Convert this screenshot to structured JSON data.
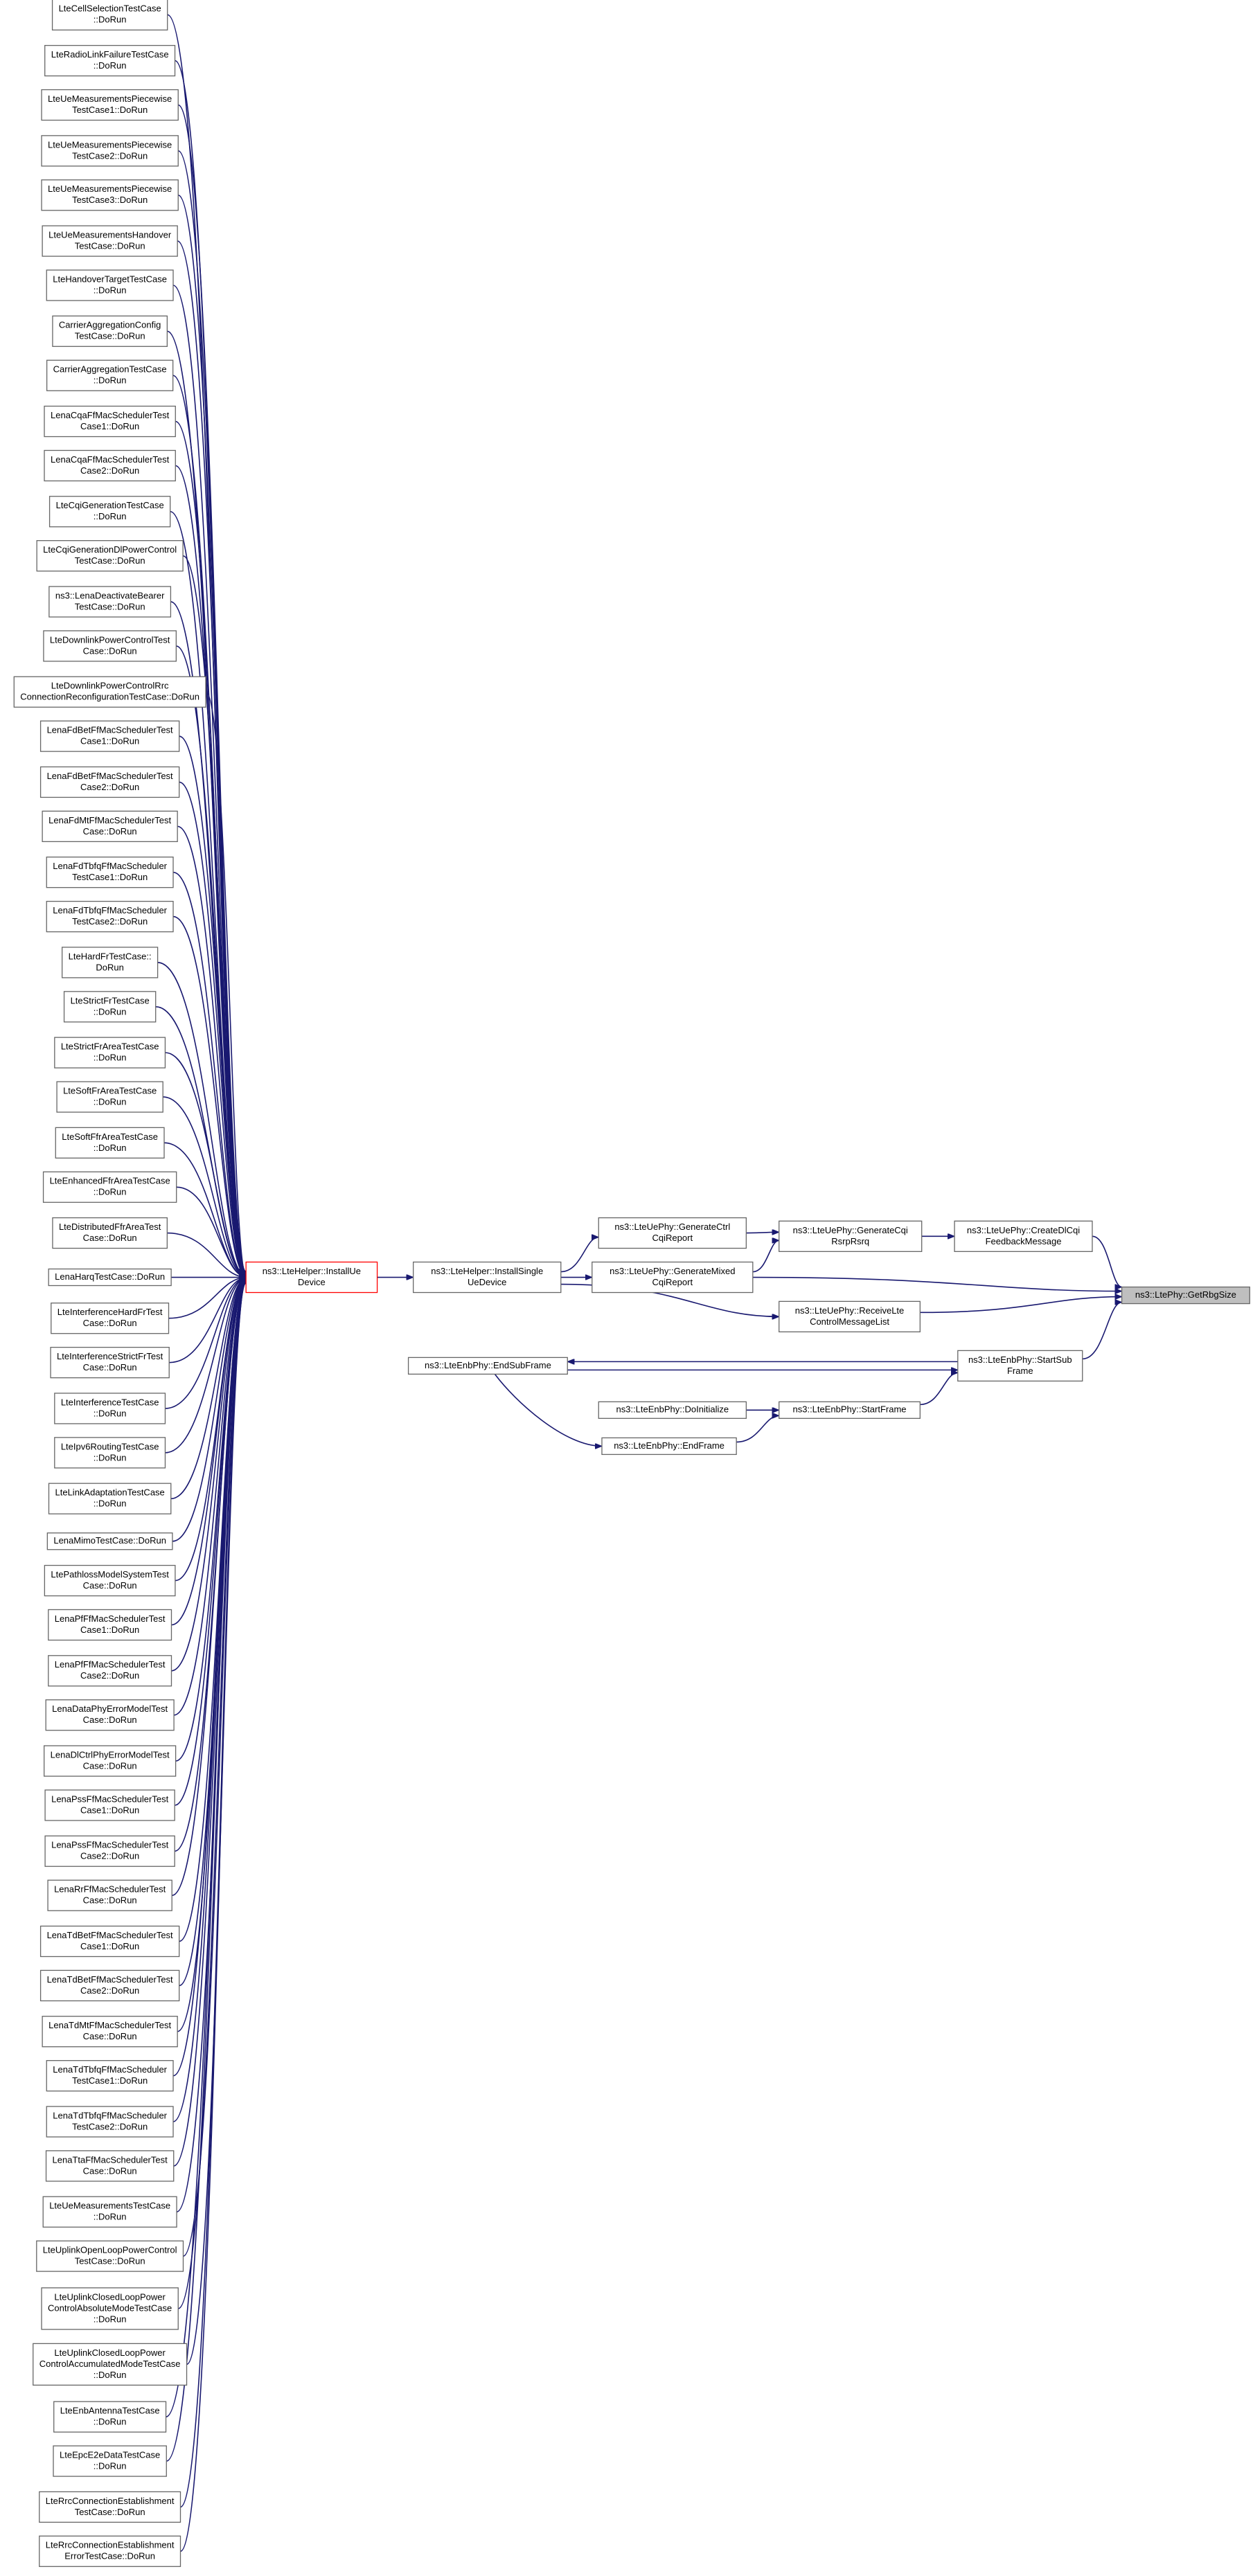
{
  "nodes": [
    {
      "lines": [
        "LteCellSelectionTestCase",
        "::DoRun"
      ]
    },
    {
      "lines": [
        "LteRadioLinkFailureTestCase",
        "::DoRun"
      ]
    },
    {
      "lines": [
        "LteUeMeasurementsPiecewise",
        "TestCase1::DoRun"
      ]
    },
    {
      "lines": [
        "LteUeMeasurementsPiecewise",
        "TestCase2::DoRun"
      ]
    },
    {
      "lines": [
        "LteUeMeasurementsPiecewise",
        "TestCase3::DoRun"
      ]
    },
    {
      "lines": [
        "LteUeMeasurementsHandover",
        "TestCase::DoRun"
      ]
    },
    {
      "lines": [
        "LteHandoverTargetTestCase",
        "::DoRun"
      ]
    },
    {
      "lines": [
        "CarrierAggregationConfig",
        "TestCase::DoRun"
      ]
    },
    {
      "lines": [
        "CarrierAggregationTestCase",
        "::DoRun"
      ]
    },
    {
      "lines": [
        "LenaCqaFfMacSchedulerTest",
        "Case1::DoRun"
      ]
    },
    {
      "lines": [
        "LenaCqaFfMacSchedulerTest",
        "Case2::DoRun"
      ]
    },
    {
      "lines": [
        "LteCqiGenerationTestCase",
        "::DoRun"
      ]
    },
    {
      "lines": [
        "LteCqiGenerationDlPowerControl",
        "TestCase::DoRun"
      ]
    },
    {
      "lines": [
        "ns3::LenaDeactivateBearer",
        "TestCase::DoRun"
      ]
    },
    {
      "lines": [
        "LteDownlinkPowerControlTest",
        "Case::DoRun"
      ]
    },
    {
      "lines": [
        "LteDownlinkPowerControlRrc",
        "ConnectionReconfigurationTestCase::DoRun"
      ]
    },
    {
      "lines": [
        "LenaFdBetFfMacSchedulerTest",
        "Case1::DoRun"
      ]
    },
    {
      "lines": [
        "LenaFdBetFfMacSchedulerTest",
        "Case2::DoRun"
      ]
    },
    {
      "lines": [
        "LenaFdMtFfMacSchedulerTest",
        "Case::DoRun"
      ]
    },
    {
      "lines": [
        "LenaFdTbfqFfMacScheduler",
        "TestCase1::DoRun"
      ]
    },
    {
      "lines": [
        "LenaFdTbfqFfMacScheduler",
        "TestCase2::DoRun"
      ]
    },
    {
      "lines": [
        "LteHardFrTestCase::",
        "DoRun"
      ]
    },
    {
      "lines": [
        "LteStrictFrTestCase",
        "::DoRun"
      ]
    },
    {
      "lines": [
        "LteStrictFrAreaTestCase",
        "::DoRun"
      ]
    },
    {
      "lines": [
        "LteSoftFrAreaTestCase",
        "::DoRun"
      ]
    },
    {
      "lines": [
        "LteSoftFfrAreaTestCase",
        "::DoRun"
      ]
    },
    {
      "lines": [
        "LteEnhancedFfrAreaTestCase",
        "::DoRun"
      ]
    },
    {
      "lines": [
        "LteDistributedFfrAreaTest",
        "Case::DoRun"
      ]
    },
    {
      "lines": [
        "LenaHarqTestCase::DoRun"
      ]
    },
    {
      "lines": [
        "LteInterferenceHardFrTest",
        "Case::DoRun"
      ]
    },
    {
      "lines": [
        "LteInterferenceStrictFrTest",
        "Case::DoRun"
      ]
    },
    {
      "lines": [
        "LteInterferenceTestCase",
        "::DoRun"
      ]
    },
    {
      "lines": [
        "LteIpv6RoutingTestCase",
        "::DoRun"
      ]
    },
    {
      "lines": [
        "LteLinkAdaptationTestCase",
        "::DoRun"
      ]
    },
    {
      "lines": [
        "LenaMimoTestCase::DoRun"
      ]
    },
    {
      "lines": [
        "LtePathlossModelSystemTest",
        "Case::DoRun"
      ]
    },
    {
      "lines": [
        "LenaPfFfMacSchedulerTest",
        "Case1::DoRun"
      ]
    },
    {
      "lines": [
        "LenaPfFfMacSchedulerTest",
        "Case2::DoRun"
      ]
    },
    {
      "lines": [
        "LenaDataPhyErrorModelTest",
        "Case::DoRun"
      ]
    },
    {
      "lines": [
        "LenaDlCtrlPhyErrorModelTest",
        "Case::DoRun"
      ]
    },
    {
      "lines": [
        "LenaPssFfMacSchedulerTest",
        "Case1::DoRun"
      ]
    },
    {
      "lines": [
        "LenaPssFfMacSchedulerTest",
        "Case2::DoRun"
      ]
    },
    {
      "lines": [
        "LenaRrFfMacSchedulerTest",
        "Case::DoRun"
      ]
    },
    {
      "lines": [
        "LenaTdBetFfMacSchedulerTest",
        "Case1::DoRun"
      ]
    },
    {
      "lines": [
        "LenaTdBetFfMacSchedulerTest",
        "Case2::DoRun"
      ]
    },
    {
      "lines": [
        "LenaTdMtFfMacSchedulerTest",
        "Case::DoRun"
      ]
    },
    {
      "lines": [
        "LenaTdTbfqFfMacScheduler",
        "TestCase1::DoRun"
      ]
    },
    {
      "lines": [
        "LenaTdTbfqFfMacScheduler",
        "TestCase2::DoRun"
      ]
    },
    {
      "lines": [
        "LenaTtaFfMacSchedulerTest",
        "Case::DoRun"
      ]
    },
    {
      "lines": [
        "LteUeMeasurementsTestCase",
        "::DoRun"
      ]
    },
    {
      "lines": [
        "LteUplinkOpenLoopPowerControl",
        "TestCase::DoRun"
      ]
    },
    {
      "lines": [
        "LteUplinkClosedLoopPower",
        "ControlAbsoluteModeTestCase",
        "::DoRun"
      ]
    },
    {
      "lines": [
        "LteUplinkClosedLoopPower",
        "ControlAccumulatedModeTestCase",
        "::DoRun"
      ]
    },
    {
      "lines": [
        "LteEnbAntennaTestCase",
        "::DoRun"
      ]
    },
    {
      "lines": [
        "LteEpcE2eDataTestCase",
        "::DoRun"
      ]
    },
    {
      "lines": [
        "LteRrcConnectionEstablishment",
        "TestCase::DoRun"
      ]
    },
    {
      "lines": [
        "LteRrcConnectionEstablishment",
        "ErrorTestCase::DoRun"
      ]
    },
    {
      "lines": [
        "ns3::LteHelper::InstallUe",
        "Device"
      ]
    },
    {
      "lines": [
        "ns3::LteHelper::InstallSingle",
        "UeDevice"
      ]
    },
    {
      "lines": [
        "ns3::LteUePhy::GenerateCtrl",
        "CqiReport"
      ]
    },
    {
      "lines": [
        "ns3::LteUePhy::GenerateMixed",
        "CqiReport"
      ]
    },
    {
      "lines": [
        "ns3::LteUePhy::GenerateCqi",
        "RsrpRsrq"
      ]
    },
    {
      "lines": [
        "ns3::LteUePhy::CreateDlCqi",
        "FeedbackMessage"
      ]
    },
    {
      "lines": [
        "ns3::LteUePhy::ReceiveLte",
        "ControlMessageList"
      ]
    },
    {
      "lines": [
        "ns3::LtePhy::GetRbgSize"
      ]
    },
    {
      "lines": [
        "ns3::LteEnbPhy::StartSub",
        "Frame"
      ]
    },
    {
      "lines": [
        "ns3::LteEnbPhy::EndSubFrame"
      ]
    },
    {
      "lines": [
        "ns3::LteEnbPhy::DoInitialize"
      ]
    },
    {
      "lines": [
        "ns3::LteEnbPhy::StartFrame"
      ]
    },
    {
      "lines": [
        "ns3::LteEnbPhy::EndFrame"
      ]
    }
  ]
}
